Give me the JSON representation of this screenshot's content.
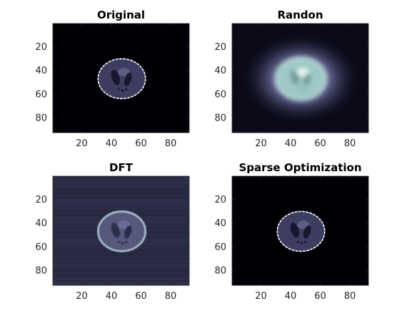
{
  "figure": {
    "colormap": "bone"
  },
  "chart_data": [
    {
      "type": "heatmap",
      "title": "Original",
      "x_ticks": [
        20,
        40,
        60,
        80
      ],
      "y_ticks": [
        20,
        40,
        60,
        80
      ],
      "xlim": [
        0.5,
        92.5
      ],
      "ylim": [
        0.5,
        92.5
      ],
      "y_direction": "reverse",
      "image": {
        "kind": "phantom",
        "center": [
          47,
          47
        ],
        "radius": 16,
        "background": "#000006",
        "head_fill": "#3c3d60",
        "rim_color": "#ffffff",
        "rim_style": "dashed",
        "ventricle_fill": "#17182f",
        "spot_fill": "#5a5c84",
        "blur": 0,
        "noise": false
      }
    },
    {
      "type": "heatmap",
      "title": "Randon",
      "x_ticks": [
        20,
        40,
        60,
        80
      ],
      "y_ticks": [
        20,
        40,
        60,
        80
      ],
      "xlim": [
        0.5,
        92.5
      ],
      "ylim": [
        0.5,
        92.5
      ],
      "y_direction": "reverse",
      "image": {
        "kind": "phantom",
        "center": [
          47,
          47
        ],
        "radius": 17,
        "background": "#0a0a18",
        "head_fill": "#9ec9c6",
        "rim_color": "#cfe6e4",
        "rim_style": "solid",
        "ventricle_fill": "#6f9896",
        "spot_fill": "#e8f5f4",
        "halo": [
          "#c9d6e0",
          "#6a6f9a",
          "#1a1a36"
        ],
        "blur": 1.6,
        "noise": false
      }
    },
    {
      "type": "heatmap",
      "title": "DFT",
      "x_ticks": [
        20,
        40,
        60,
        80
      ],
      "y_ticks": [
        20,
        40,
        60,
        80
      ],
      "xlim": [
        0.5,
        92.5
      ],
      "ylim": [
        0.5,
        92.5
      ],
      "y_direction": "reverse",
      "image": {
        "kind": "phantom",
        "center": [
          47,
          47
        ],
        "radius": 16,
        "background": "#2a2b45",
        "head_fill": "#56587c",
        "rim_color": "#b6d3d8",
        "rim_style": "solid",
        "ventricle_fill": "#2c2d48",
        "spot_fill": "#6a6d93",
        "blur": 0.4,
        "noise": true
      }
    },
    {
      "type": "heatmap",
      "title": "Sparse Optimization",
      "x_ticks": [
        20,
        40,
        60,
        80
      ],
      "y_ticks": [
        20,
        40,
        60,
        80
      ],
      "xlim": [
        0.5,
        92.5
      ],
      "ylim": [
        0.5,
        92.5
      ],
      "y_direction": "reverse",
      "image": {
        "kind": "phantom",
        "center": [
          47,
          47
        ],
        "radius": 16,
        "background": "#000006",
        "head_fill": "#3c3d60",
        "rim_color": "#ffffff",
        "rim_style": "dashed",
        "ventricle_fill": "#17182f",
        "spot_fill": "#5a5c84",
        "blur": 0,
        "noise": false
      }
    }
  ]
}
